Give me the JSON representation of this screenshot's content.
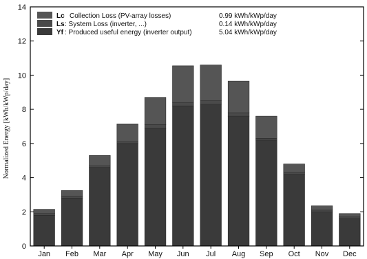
{
  "chart_data": {
    "type": "bar",
    "stacked": true,
    "categories": [
      "Jan",
      "Feb",
      "Mar",
      "Apr",
      "May",
      "Jun",
      "Jul",
      "Aug",
      "Sep",
      "Oct",
      "Nov",
      "Dec"
    ],
    "ylabel": "Normalized Energy [kWh/kWp/day]",
    "ylim": [
      0,
      14
    ],
    "yticks": [
      0,
      2,
      4,
      6,
      8,
      10,
      12,
      14
    ],
    "grid": false,
    "legend_position": "top-left",
    "series": [
      {
        "key": "Yf",
        "name": "Produced useful energy (inverter output)",
        "value_label": "5.04 kWh/kWp/day",
        "color": "#3a3a3a",
        "values": [
          1.8,
          2.8,
          4.6,
          6.0,
          6.9,
          8.2,
          8.3,
          7.6,
          6.2,
          4.2,
          2.0,
          1.6
        ]
      },
      {
        "key": "Ls",
        "name": "System Loss  (inverter, ...)",
        "value_label": "0.14 kWh/kWp/day",
        "color": "#4a4a4a",
        "values": [
          0.1,
          0.1,
          0.1,
          0.1,
          0.2,
          0.2,
          0.2,
          0.2,
          0.1,
          0.1,
          0.1,
          0.1
        ]
      },
      {
        "key": "Lc",
        "name": "Collection Loss (PV-array losses)",
        "value_label": "0.99 kWh/kWp/day",
        "color": "#555555",
        "values": [
          0.25,
          0.35,
          0.6,
          1.05,
          1.6,
          2.15,
          2.1,
          1.85,
          1.3,
          0.5,
          0.25,
          0.2
        ]
      }
    ]
  },
  "legend": {
    "lc_key": "Lc",
    "lc_text": "Collection Loss (PV-array losses)",
    "lc_value": "0.99 kWh/kWp/day",
    "ls_key": "Ls",
    "ls_text": ": System Loss  (inverter, ...)",
    "ls_value": "0.14 kWh/kWp/day",
    "yf_key": "Yf",
    "yf_text": ": Produced useful energy  (inverter output)",
    "yf_value": "5.04 kWh/kWp/day"
  }
}
